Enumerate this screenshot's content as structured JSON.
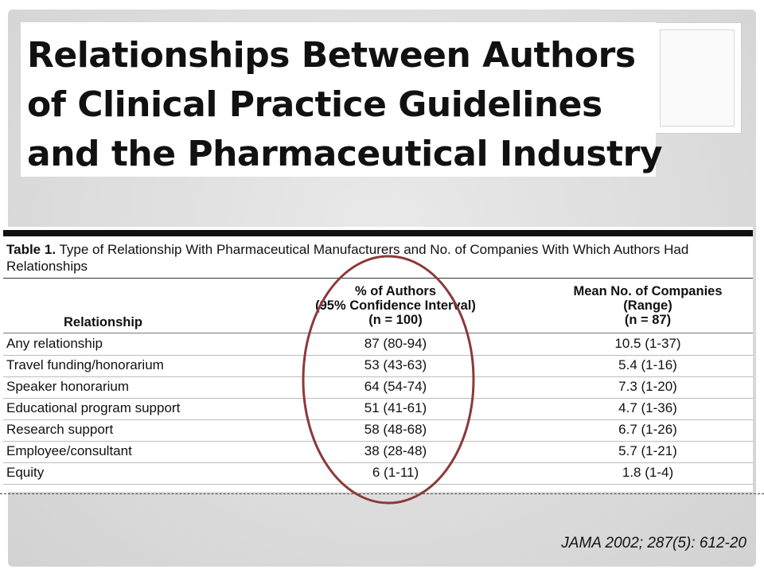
{
  "slide": {
    "title_lines": [
      "Relationships Between Authors",
      "of Clinical Practice Guidelines",
      "and the Pharmaceutical Industry"
    ],
    "citation": "JAMA 2002; 287(5): 612-20",
    "highlight_color": "#8b3a3a"
  },
  "table": {
    "label": "Table 1.",
    "caption": "Type of Relationship With Pharmaceutical Manufacturers and No. of Companies With Which Authors Had Relationships",
    "headers": {
      "relationship": "Relationship",
      "pct": [
        "% of Authors",
        "(95% Confidence Interval)",
        "(n = 100)"
      ],
      "mean": [
        "Mean No. of Companies",
        "(Range)",
        "(n = 87)"
      ]
    },
    "rows": [
      {
        "relationship": "Any relationship",
        "pct": "87 (80-94)",
        "mean": "10.5 (1-37)"
      },
      {
        "relationship": "Travel funding/honorarium",
        "pct": "53 (43-63)",
        "mean": "5.4 (1-16)"
      },
      {
        "relationship": "Speaker honorarium",
        "pct": "64 (54-74)",
        "mean": "7.3 (1-20)"
      },
      {
        "relationship": "Educational program support",
        "pct": "51 (41-61)",
        "mean": "4.7 (1-36)"
      },
      {
        "relationship": "Research support",
        "pct": "58 (48-68)",
        "mean": "6.7 (1-26)"
      },
      {
        "relationship": "Employee/consultant",
        "pct": "38 (28-48)",
        "mean": "5.7 (1-21)"
      },
      {
        "relationship": "Equity",
        "pct": "6 (1-11)",
        "mean": "1.8 (1-4)"
      }
    ]
  }
}
